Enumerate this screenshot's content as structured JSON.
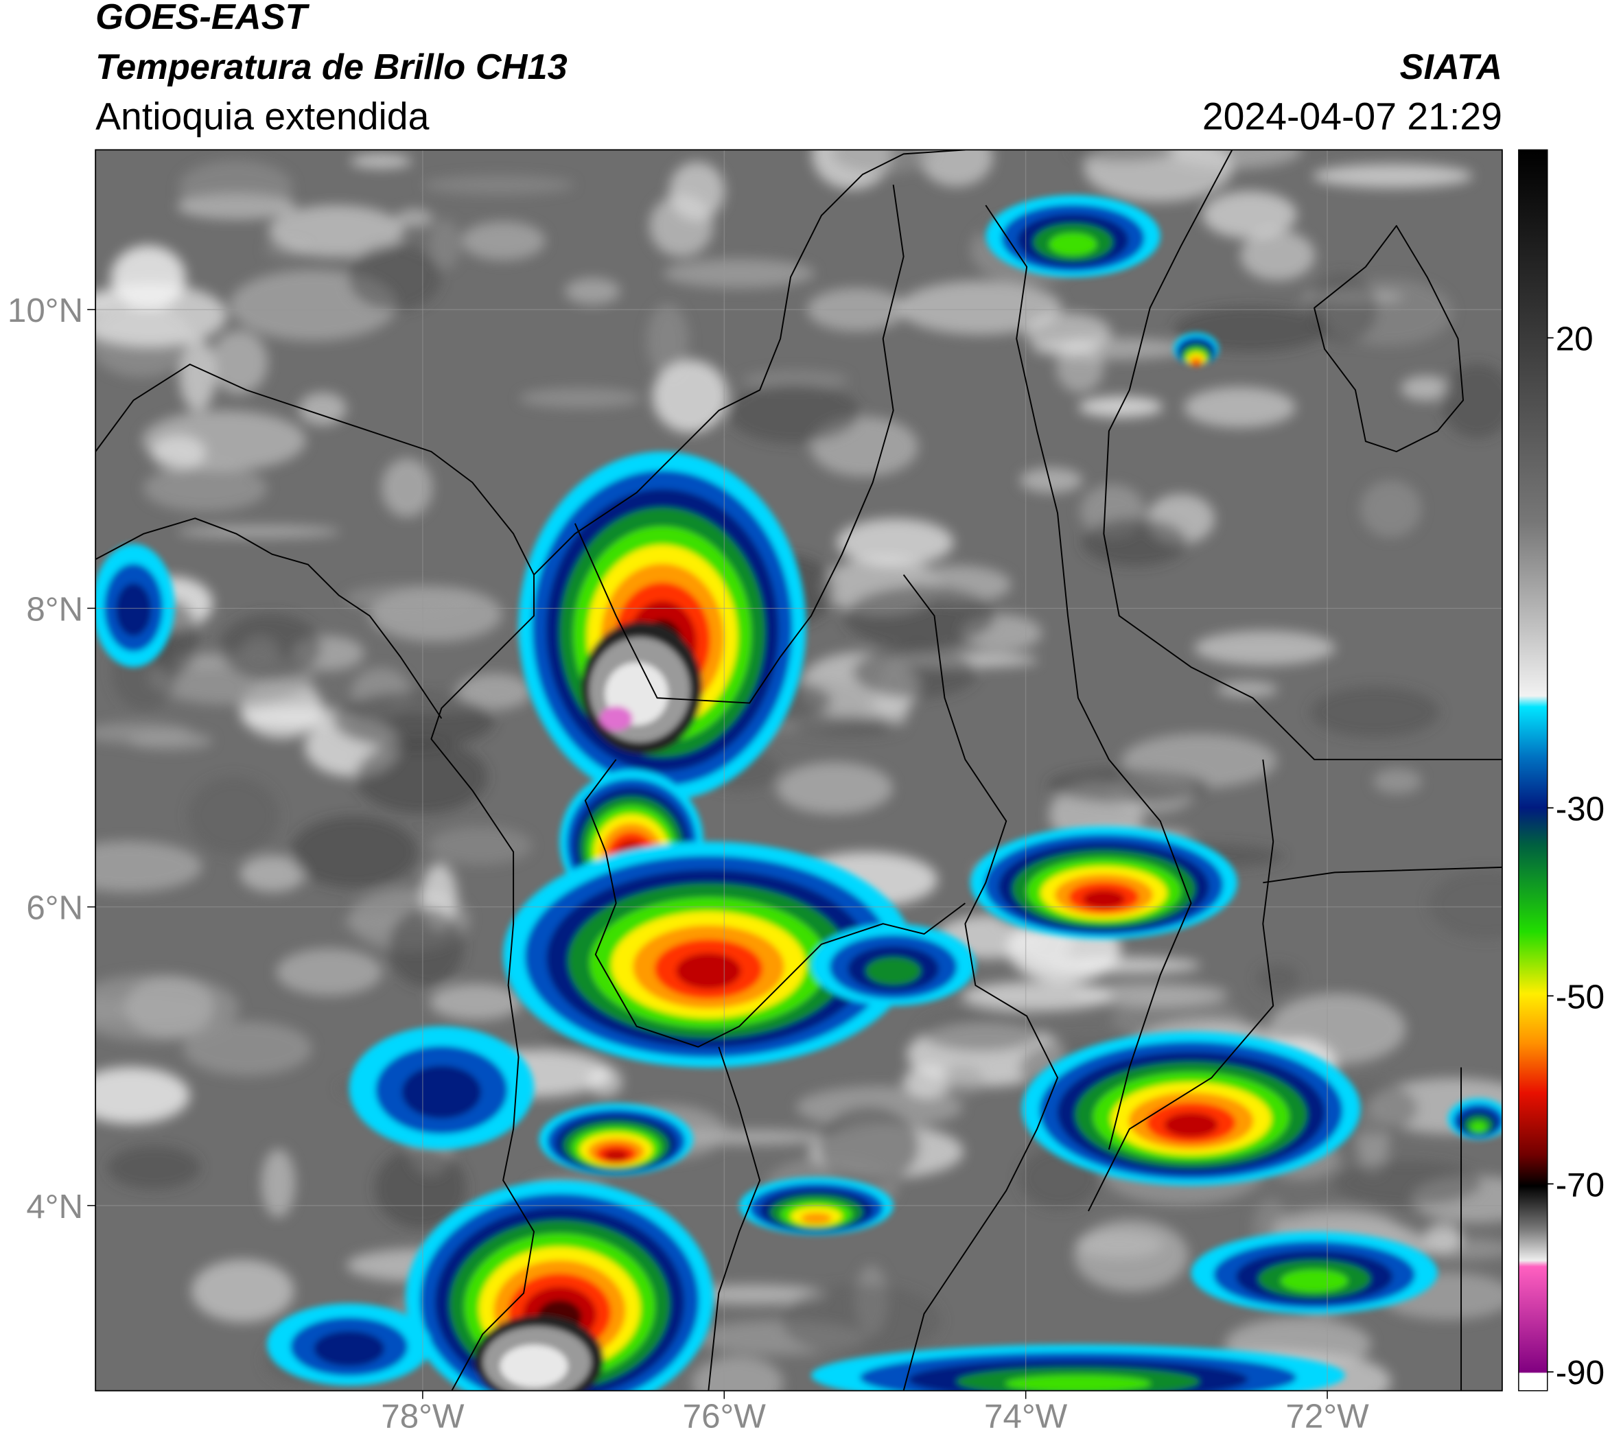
{
  "header": {
    "satellite": "GOES-EAST",
    "product": "Temperatura de Brillo CH13",
    "region": "Antioquia extendida",
    "agency": "SIATA",
    "datetime": "2024-04-07 21:29"
  },
  "map": {
    "xlim": [
      -80.17,
      -70.84
    ],
    "ylim": [
      2.76,
      11.07
    ],
    "xticks": [
      {
        "value": -78,
        "label": "78°W"
      },
      {
        "value": -76,
        "label": "76°W"
      },
      {
        "value": -74,
        "label": "74°W"
      },
      {
        "value": -72,
        "label": "72°W"
      }
    ],
    "yticks": [
      {
        "value": 10,
        "label": "10°N"
      },
      {
        "value": 8,
        "label": "8°N"
      },
      {
        "value": 6,
        "label": "6°N"
      },
      {
        "value": 4,
        "label": "4°N"
      }
    ],
    "grid": true
  },
  "colorbar": {
    "ylim": [
      -92,
      40
    ],
    "ticks": [
      20,
      -30,
      -50,
      -70,
      -90
    ]
  }
}
